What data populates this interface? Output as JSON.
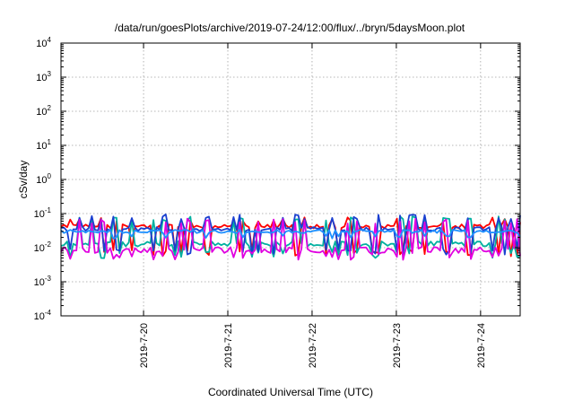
{
  "chart_data": {
    "type": "line",
    "title": "/data/run/goesPlots/archive/2019-07-24/12:00/flux/../bryn/5daysMoon.plot",
    "xlabel": "Coordinated Universal Time (UTC)",
    "ylabel": "cSv/day",
    "yscale": "log",
    "ylim": [
      0.0001,
      10000
    ],
    "xlim": [
      0,
      5.45
    ],
    "x_unit": "days since 2019-07-19 12:00 UTC",
    "y_ticks": [
      {
        "value": 0.0001,
        "base": "10",
        "exp": "-4"
      },
      {
        "value": 0.001,
        "base": "10",
        "exp": "-3"
      },
      {
        "value": 0.01,
        "base": "10",
        "exp": "-2"
      },
      {
        "value": 0.1,
        "base": "10",
        "exp": "-1"
      },
      {
        "value": 1,
        "base": "10",
        "exp": "0"
      },
      {
        "value": 10,
        "base": "10",
        "exp": "1"
      },
      {
        "value": 100,
        "base": "10",
        "exp": "2"
      },
      {
        "value": 1000,
        "base": "10",
        "exp": "3"
      },
      {
        "value": 10000,
        "base": "10",
        "exp": "4"
      }
    ],
    "x_ticks": [
      {
        "value": 0.98,
        "label": "2019-7-20"
      },
      {
        "value": 1.98,
        "label": "2019-7-21"
      },
      {
        "value": 2.98,
        "label": "2019-7-22"
      },
      {
        "value": 3.98,
        "label": "2019-7-23"
      },
      {
        "value": 4.98,
        "label": "2019-7-24"
      }
    ],
    "grid": true,
    "series": [
      {
        "color": "#ff0000",
        "baseline": 0.042,
        "spike_high": 0.065,
        "spike_low": 0.007,
        "jitter": 0.12
      },
      {
        "color": "#00b0a0",
        "baseline": 0.013,
        "spike_high": 0.07,
        "spike_low": 0.006,
        "jitter": 0.15
      },
      {
        "color": "#1a3fd0",
        "baseline": 0.035,
        "spike_high": 0.08,
        "spike_low": 0.0075,
        "jitter": 0.12
      },
      {
        "color": "#e000e0",
        "baseline": 0.0085,
        "spike_high": 0.06,
        "spike_low": 0.0055,
        "jitter": 0.18
      },
      {
        "color": "#1e90ff",
        "baseline": 0.03,
        "spike_high": 0.055,
        "spike_low": 0.02,
        "jitter": 0.1
      }
    ]
  }
}
